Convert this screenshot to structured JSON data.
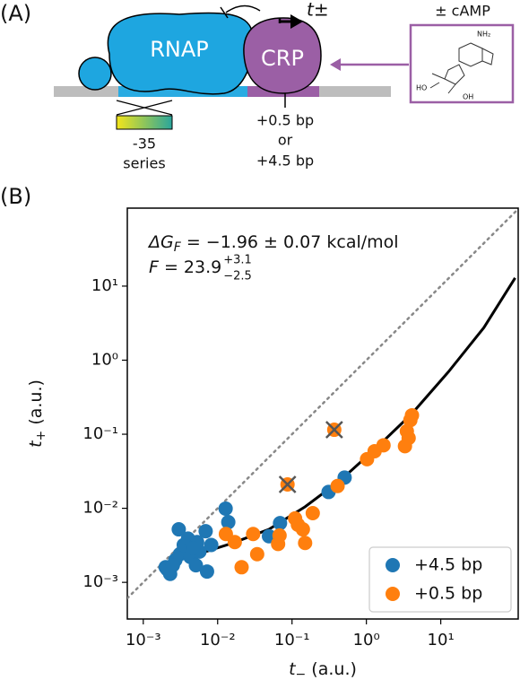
{
  "panel_a": {
    "label": "(A)",
    "rnap": "RNAP",
    "crp": "CRP",
    "output": "t±",
    "ligand": "± cAMP",
    "structure_labels": [
      "NH₂",
      "HO",
      "OH"
    ],
    "promoter_series": [
      "-35",
      "series"
    ],
    "spacing": [
      "+0.5 bp",
      "or",
      "+4.5 bp"
    ]
  },
  "panel_b_label": "(B)",
  "chart_data": {
    "type": "scatter",
    "annotations": {
      "delta_g": {
        "symbol": "ΔG",
        "subscript": "F",
        "text": " = −1.96 ± 0.07 kcal/mol"
      },
      "fold": {
        "symbol": "F",
        "text": " = 23.9",
        "upper": "+3.1",
        "lower": "−2.5"
      }
    },
    "xlabel": {
      "symbol": "t",
      "subscript": "−",
      "text": " (a.u.)"
    },
    "ylabel": {
      "symbol": "t",
      "subscript": "+",
      "text": " (a.u.)"
    },
    "xscale": "log",
    "yscale": "log",
    "xlim": [
      0.00061,
      110
    ],
    "ylim": [
      0.00032,
      113
    ],
    "xticks": [
      {
        "value": 0.001,
        "label": "10⁻³"
      },
      {
        "value": 0.01,
        "label": "10⁻²"
      },
      {
        "value": 0.1,
        "label": "10⁻¹"
      },
      {
        "value": 1,
        "label": "10⁰"
      },
      {
        "value": 10,
        "label": "10¹"
      }
    ],
    "yticks": [
      {
        "value": 0.001,
        "label": "10⁻³"
      },
      {
        "value": 0.01,
        "label": "10⁻²"
      },
      {
        "value": 0.1,
        "label": "10⁻¹"
      },
      {
        "value": 1,
        "label": "10⁰"
      },
      {
        "value": 10,
        "label": "10¹"
      }
    ],
    "grid": false,
    "identity_line": true,
    "legend": "lower right",
    "series": [
      {
        "name": "+4.5 bp",
        "color": "#1f77b4",
        "x": [
          0.002,
          0.0023,
          0.0027,
          0.0031,
          0.0035,
          0.004,
          0.0043,
          0.0051,
          0.0057,
          0.0072,
          0.003,
          0.0069,
          0.0128,
          0.0139,
          0.0053,
          0.0082,
          0.0021,
          0.0025,
          0.049,
          0.069,
          0.31,
          0.51,
          0.0047
        ],
        "values": [
          0.0016,
          0.0013,
          0.002,
          0.0024,
          0.0032,
          0.0039,
          0.0022,
          0.0017,
          0.0026,
          0.0014,
          0.0052,
          0.0049,
          0.0099,
          0.0065,
          0.0035,
          0.0032,
          0.0015,
          0.0017,
          0.0042,
          0.0063,
          0.0166,
          0.026,
          0.0029
        ]
      },
      {
        "name": "+0.5 bp",
        "color": "#ff7f0e",
        "x": [
          0.0129,
          0.017,
          0.021,
          0.034,
          0.03,
          0.065,
          0.068,
          0.12,
          0.11,
          0.15,
          0.087,
          0.37,
          0.14,
          0.19,
          0.41,
          1.02,
          1.29,
          1.7,
          3.3,
          3.5,
          3.9,
          4.1,
          3.7
        ],
        "values": [
          0.0045,
          0.0035,
          0.0016,
          0.0024,
          0.0045,
          0.0033,
          0.0043,
          0.006,
          0.0073,
          0.0034,
          0.021,
          0.115,
          0.0052,
          0.0086,
          0.02,
          0.046,
          0.059,
          0.071,
          0.069,
          0.11,
          0.155,
          0.18,
          0.089
        ],
        "excluded": [
          10,
          11
        ]
      }
    ],
    "fit": {
      "color": "#000000",
      "x": [
        0.0026,
        0.0069,
        0.016,
        0.049,
        0.15,
        0.45,
        1.35,
        4.1,
        12.6,
        38,
        100
      ],
      "values": [
        0.0024,
        0.0026,
        0.0034,
        0.0052,
        0.0105,
        0.024,
        0.065,
        0.19,
        0.69,
        2.75,
        12.9
      ]
    }
  }
}
